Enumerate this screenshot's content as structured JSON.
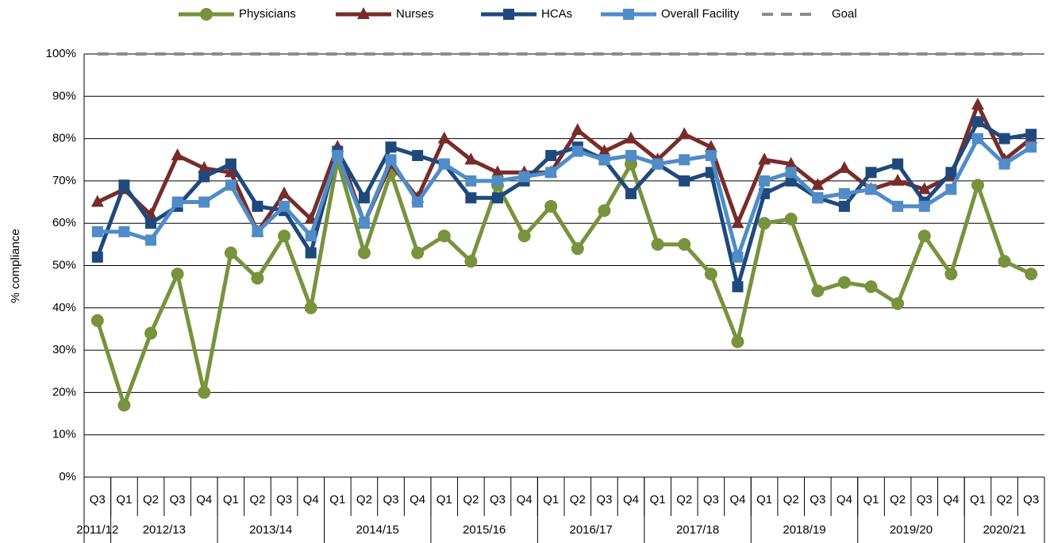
{
  "chart_data": {
    "type": "line",
    "y_label": "% compliance",
    "categories": [
      "Q3",
      "Q1",
      "Q2",
      "Q3",
      "Q4",
      "Q1",
      "Q2",
      "Q3",
      "Q4",
      "Q1",
      "Q2",
      "Q3",
      "Q4",
      "Q1",
      "Q2",
      "Q3",
      "Q4",
      "Q1",
      "Q2",
      "Q3",
      "Q4",
      "Q1",
      "Q2",
      "Q3",
      "Q4",
      "Q1",
      "Q2",
      "Q3",
      "Q4",
      "Q1",
      "Q2",
      "Q3",
      "Q4",
      "Q1",
      "Q2",
      "Q3"
    ],
    "x_groups": [
      {
        "label": "2011/12",
        "count": 1
      },
      {
        "label": "2012/13",
        "count": 4
      },
      {
        "label": "2013/14",
        "count": 4
      },
      {
        "label": "2014/15",
        "count": 4
      },
      {
        "label": "2015/16",
        "count": 4
      },
      {
        "label": "2016/17",
        "count": 4
      },
      {
        "label": "2017/18",
        "count": 4
      },
      {
        "label": "2018/19",
        "count": 4
      },
      {
        "label": "2019/20",
        "count": 4
      },
      {
        "label": "2020/21",
        "count": 3
      }
    ],
    "series": [
      {
        "name": "Physicians",
        "color": "#77933c",
        "marker": "circle",
        "values": [
          37,
          17,
          34,
          48,
          20,
          53,
          47,
          57,
          40,
          75,
          53,
          72,
          53,
          57,
          51,
          69,
          57,
          64,
          54,
          63,
          74,
          55,
          55,
          48,
          32,
          60,
          61,
          44,
          46,
          45,
          41,
          57,
          48,
          69,
          51,
          48
        ]
      },
      {
        "name": "Nurses",
        "color": "#772c2a",
        "marker": "triangle",
        "values": [
          65,
          68,
          62,
          76,
          73,
          72,
          58,
          67,
          61,
          78,
          60,
          74,
          66,
          80,
          75,
          72,
          72,
          72,
          82,
          77,
          80,
          75,
          81,
          78,
          60,
          75,
          74,
          69,
          73,
          68,
          70,
          68,
          71,
          88,
          75,
          80
        ]
      },
      {
        "name": "HCAs",
        "color": "#1f497d",
        "marker": "square",
        "values": [
          52,
          69,
          60,
          64,
          71,
          74,
          64,
          63,
          53,
          77,
          66,
          78,
          76,
          74,
          66,
          66,
          70,
          76,
          78,
          75,
          67,
          74,
          70,
          72,
          45,
          67,
          70,
          66,
          64,
          72,
          74,
          65,
          72,
          84,
          80,
          81
        ]
      },
      {
        "name": "Overall Facility",
        "color": "#4f8cc8",
        "marker": "square",
        "values": [
          58,
          58,
          56,
          65,
          65,
          69,
          58,
          64,
          57,
          76,
          60,
          75,
          65,
          74,
          70,
          70,
          71,
          72,
          77,
          75,
          76,
          74,
          75,
          76,
          52,
          70,
          72,
          66,
          67,
          68,
          64,
          64,
          68,
          80,
          74,
          78
        ]
      },
      {
        "name": "Goal",
        "color": "#8c8c8c",
        "marker": "none",
        "dashed": true,
        "values": [
          100,
          100,
          100,
          100,
          100,
          100,
          100,
          100,
          100,
          100,
          100,
          100,
          100,
          100,
          100,
          100,
          100,
          100,
          100,
          100,
          100,
          100,
          100,
          100,
          100,
          100,
          100,
          100,
          100,
          100,
          100,
          100,
          100,
          100,
          100,
          100
        ]
      }
    ],
    "ylim": [
      0,
      100
    ],
    "yticks": [
      {
        "value": 0,
        "label": "0%"
      },
      {
        "value": 10,
        "label": "10%"
      },
      {
        "value": 20,
        "label": "20%"
      },
      {
        "value": 30,
        "label": "30%"
      },
      {
        "value": 40,
        "label": "40%"
      },
      {
        "value": 50,
        "label": "50%"
      },
      {
        "value": 60,
        "label": "60%"
      },
      {
        "value": 70,
        "label": "70%"
      },
      {
        "value": 80,
        "label": "80%"
      },
      {
        "value": 90,
        "label": "90%"
      },
      {
        "value": 100,
        "label": "100%"
      }
    ],
    "grid": true,
    "legend": "top"
  }
}
